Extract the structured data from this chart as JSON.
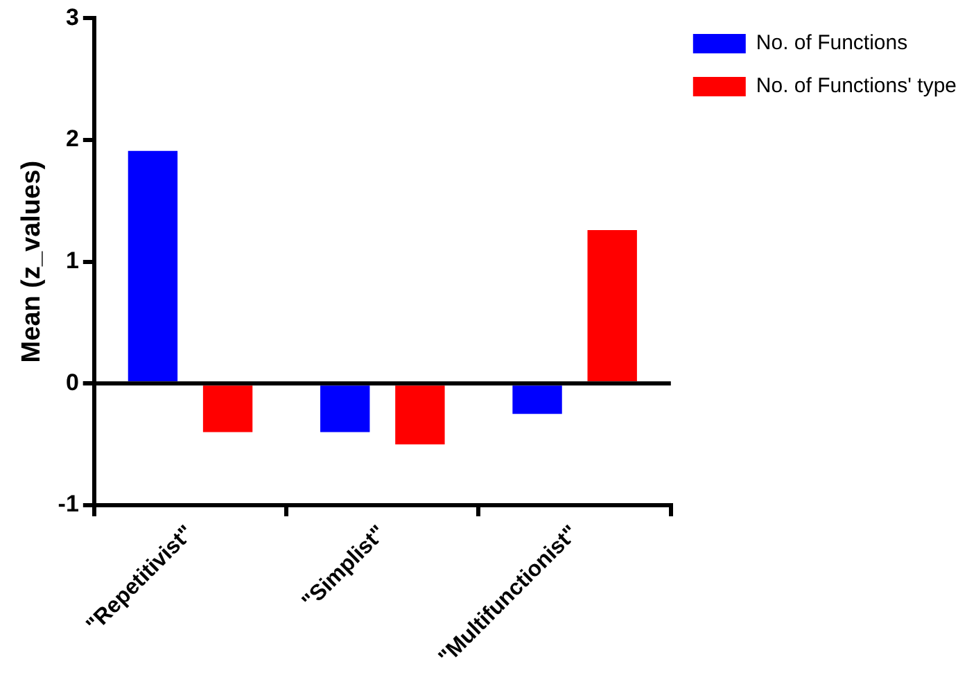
{
  "chart_data": {
    "type": "bar",
    "ylabel": "Mean (z_values)",
    "categories": [
      "\"Repetitivist\"",
      "\"Simplist\"",
      "\"Multifunctionist\""
    ],
    "series": [
      {
        "name": "No. of Functions",
        "color": "#0000ff",
        "values": [
          1.91,
          -0.4,
          -0.25
        ]
      },
      {
        "name": "No. of Functions' type",
        "color": "#ff0000",
        "values": [
          -0.4,
          -0.5,
          1.26
        ]
      }
    ],
    "ylim": [
      -1,
      3
    ],
    "yticks": [
      -1,
      0,
      1,
      2,
      3
    ],
    "grid": false,
    "legend": "top right",
    "ref_lines": [
      {
        "axis": "y",
        "value": 0
      }
    ]
  }
}
